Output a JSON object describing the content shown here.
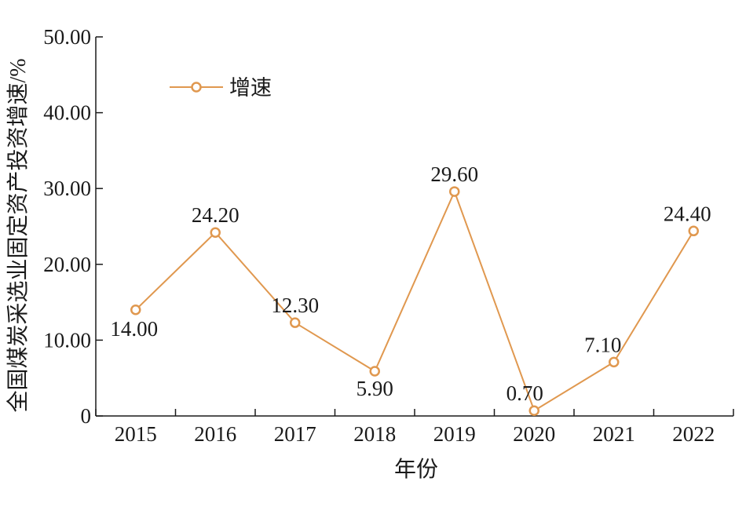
{
  "chart_data": {
    "type": "line",
    "categories": [
      "2015",
      "2016",
      "2017",
      "2018",
      "2019",
      "2020",
      "2021",
      "2022"
    ],
    "series": [
      {
        "name": "增速",
        "values": [
          14.0,
          24.2,
          12.3,
          5.9,
          29.6,
          0.7,
          7.1,
          24.4
        ]
      }
    ],
    "data_labels": [
      "14.00",
      "24.20",
      "12.30",
      "5.90",
      "29.60",
      "0.70",
      "7.10",
      "24.40"
    ],
    "xlabel": "年份",
    "ylabel": "全国煤炭采选业固定资产投资增速/%",
    "ylim": [
      0,
      50
    ],
    "yticks": [
      0,
      10,
      20,
      30,
      40,
      50
    ],
    "ytick_labels": [
      "0",
      "10.00",
      "20.00",
      "30.00",
      "40.00",
      "50.00"
    ],
    "grid": false,
    "legend_position": "top-left",
    "line_color": "#E0984F"
  }
}
